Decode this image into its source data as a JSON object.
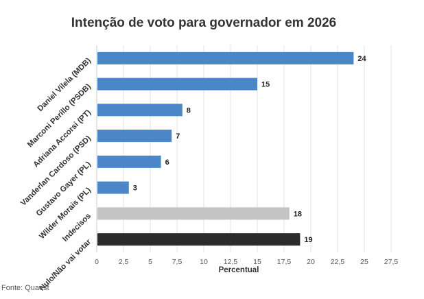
{
  "chart_data": {
    "type": "bar",
    "orientation": "horizontal",
    "title": "Intenção de voto para governador em 2026",
    "categories": [
      "Daniel Vilela (MDB)",
      "Marconi Perillo (PSDB)",
      "Adriana Accorsi (PT)",
      "Vanderlan Cardoso (PSD)",
      "Gustavo Gayer (PL)",
      "Wilder Morais (PL)",
      "Indecisos",
      "Nulo/Não vai votar"
    ],
    "values": [
      24,
      15,
      8,
      7,
      6,
      3,
      18,
      19
    ],
    "bar_colors": [
      "#4a86c8",
      "#4a86c8",
      "#4a86c8",
      "#4a86c8",
      "#4a86c8",
      "#4a86c8",
      "#c4c4c4",
      "#2b2b2b"
    ],
    "xlabel": "Percentual",
    "ylabel": "",
    "xlim": [
      0,
      27.5
    ],
    "xticks": [
      "0",
      "2,5",
      "5",
      "7,5",
      "10",
      "12,5",
      "15",
      "17,5",
      "20",
      "22,5",
      "25",
      "27,5"
    ],
    "grid": true,
    "source": "Fonte: Quaest"
  }
}
